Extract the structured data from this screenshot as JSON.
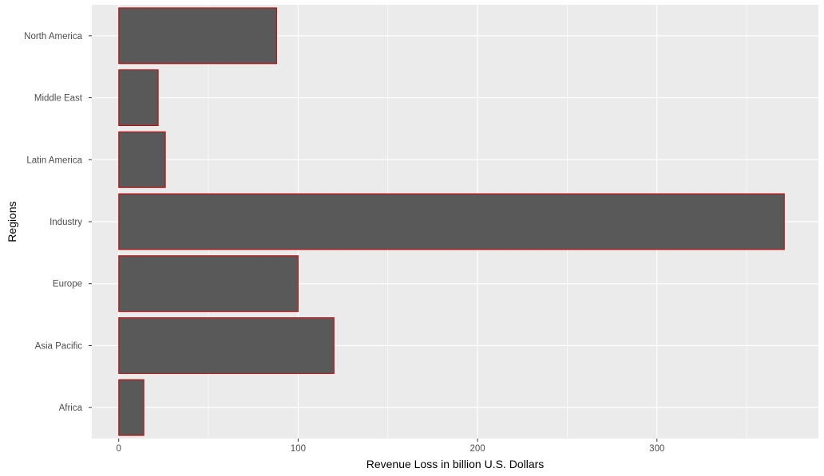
{
  "chart_data": {
    "type": "bar",
    "orientation": "horizontal",
    "xlabel": "Revenue Loss in billion U.S. Dollars",
    "ylabel": "Regions",
    "categories": [
      "Africa",
      "Asia Pacific",
      "Europe",
      "Industry",
      "Latin America",
      "Middle East",
      "North America"
    ],
    "values": [
      14,
      120,
      100,
      371,
      26,
      22,
      88
    ],
    "xlim": [
      -15,
      390
    ],
    "xticks": [
      0,
      100,
      200,
      300
    ],
    "grid": true,
    "legend": "none",
    "colors": {
      "panel_background": "#ebebeb",
      "grid": "#ffffff",
      "bar_fill": "#595959",
      "bar_outline": "#cc0000",
      "tick_text": "#4d4d4d",
      "tick_mark": "#333333",
      "title_text": "#000000"
    }
  }
}
